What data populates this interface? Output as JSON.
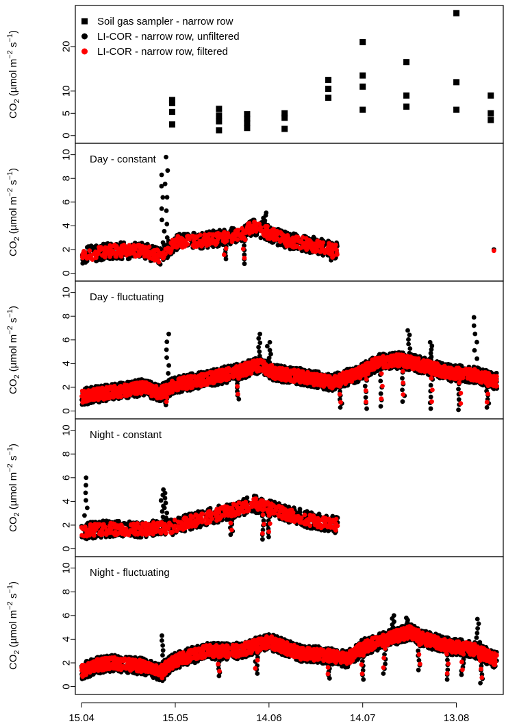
{
  "chart_data": {
    "type": "scatter",
    "ylabel": {
      "base": "CO",
      "sub": "2",
      "rest": " (µmol m",
      "sup1": "−2",
      "mid": " s",
      "sup2": "−1",
      "close": ")"
    },
    "x_ticks": [
      {
        "label": "15.04",
        "day": 0
      },
      {
        "label": "15.05",
        "day": 30
      },
      {
        "label": "14.06",
        "day": 60
      },
      {
        "label": "14.07",
        "day": 90
      },
      {
        "label": "13.08",
        "day": 120
      }
    ],
    "xlim_days": [
      -2,
      135
    ],
    "colors": {
      "unfiltered": "#000000",
      "filtered": "#ff0000",
      "sampler": "#000000"
    },
    "panels": [
      {
        "title": "",
        "ylim": [
          -0.5,
          28
        ],
        "yticks": [
          0,
          5,
          10,
          20
        ],
        "ytick_labels": [
          "0",
          "5",
          "10",
          "20"
        ],
        "legend": {
          "position": "top-left",
          "entries": [
            {
              "label": "Soil gas sampler - narrow row",
              "marker": "square",
              "color": "#000000"
            },
            {
              "label": "LI-COR - narrow row, unfiltered",
              "marker": "circle",
              "color": "#000000"
            },
            {
              "label": "LI-COR - narrow row, filtered",
              "marker": "circle",
              "color": "#ff0000"
            }
          ]
        },
        "sampler_points": [
          {
            "x": 29,
            "y": 8.0
          },
          {
            "x": 29,
            "y": 7.3
          },
          {
            "x": 29,
            "y": 5.3
          },
          {
            "x": 29,
            "y": 2.5
          },
          {
            "x": 44,
            "y": 6.0
          },
          {
            "x": 44,
            "y": 4.5
          },
          {
            "x": 44,
            "y": 3.2
          },
          {
            "x": 44,
            "y": 1.2
          },
          {
            "x": 53,
            "y": 4.8
          },
          {
            "x": 53,
            "y": 3.8
          },
          {
            "x": 53,
            "y": 2.8
          },
          {
            "x": 53,
            "y": 1.7
          },
          {
            "x": 65,
            "y": 5.0
          },
          {
            "x": 65,
            "y": 4.0
          },
          {
            "x": 65,
            "y": 1.5
          },
          {
            "x": 79,
            "y": 12.5
          },
          {
            "x": 79,
            "y": 10.5
          },
          {
            "x": 79,
            "y": 8.5
          },
          {
            "x": 90,
            "y": 21.0
          },
          {
            "x": 90,
            "y": 13.5
          },
          {
            "x": 90,
            "y": 11.0
          },
          {
            "x": 90,
            "y": 5.8
          },
          {
            "x": 104,
            "y": 16.5
          },
          {
            "x": 104,
            "y": 9.0
          },
          {
            "x": 104,
            "y": 6.5
          },
          {
            "x": 120,
            "y": 27.5
          },
          {
            "x": 120,
            "y": 12.0
          },
          {
            "x": 120,
            "y": 5.8
          },
          {
            "x": 131,
            "y": 9.0
          },
          {
            "x": 131,
            "y": 5.0
          },
          {
            "x": 131,
            "y": 3.5
          }
        ]
      },
      {
        "title": "Day - constant",
        "ylim": [
          -0.2,
          10.5
        ],
        "yticks": [
          0,
          2,
          4,
          6,
          8,
          10
        ],
        "ytick_labels": [
          "0",
          "2",
          "4",
          "6",
          "8",
          "10"
        ],
        "series_profile": {
          "start": 0,
          "end": 82,
          "anchors": [
            [
              0,
              1.5
            ],
            [
              10,
              1.9
            ],
            [
              20,
              1.9
            ],
            [
              25,
              1.4
            ],
            [
              30,
              2.6
            ],
            [
              40,
              2.8
            ],
            [
              50,
              3.2
            ],
            [
              55,
              3.9
            ],
            [
              60,
              3.4
            ],
            [
              65,
              2.8
            ],
            [
              70,
              2.6
            ],
            [
              82,
              1.9
            ]
          ],
          "spikes": [
            [
              26,
              8.3
            ],
            [
              27,
              9.8
            ],
            [
              58,
              4.4
            ],
            [
              58.5,
              5.1
            ]
          ],
          "dips": [
            [
              46,
              1.2
            ],
            [
              52,
              0.8
            ],
            [
              80,
              1.1
            ]
          ],
          "isolated": [
            [
              132,
              2.0
            ],
            [
              132,
              2.1
            ]
          ]
        }
      },
      {
        "title": "Day - fluctuating",
        "ylim": [
          -0.2,
          10.5
        ],
        "yticks": [
          0,
          2,
          4,
          6,
          8,
          10
        ],
        "ytick_labels": [
          "0",
          "2",
          "4",
          "6",
          "8",
          "10"
        ],
        "series_profile": {
          "start": 0,
          "end": 133,
          "anchors": [
            [
              0,
              1.2
            ],
            [
              10,
              1.6
            ],
            [
              20,
              2.0
            ],
            [
              25,
              1.5
            ],
            [
              30,
              2.2
            ],
            [
              40,
              2.7
            ],
            [
              50,
              3.3
            ],
            [
              57,
              3.9
            ],
            [
              62,
              3.2
            ],
            [
              70,
              2.9
            ],
            [
              80,
              2.4
            ],
            [
              88,
              3.1
            ],
            [
              95,
              4.1
            ],
            [
              102,
              4.3
            ],
            [
              110,
              3.8
            ],
            [
              118,
              3.2
            ],
            [
              125,
              3.1
            ],
            [
              133,
              2.5
            ]
          ],
          "spikes": [
            [
              27.5,
              6.5
            ],
            [
              57,
              6.5
            ],
            [
              60,
              5.8
            ],
            [
              105,
              6.8
            ],
            [
              126,
              7.9
            ],
            [
              112,
              5.8
            ]
          ],
          "dips": [
            [
              27,
              0.5
            ],
            [
              50,
              1.0
            ],
            [
              83,
              0.3
            ],
            [
              91,
              0.2
            ],
            [
              96,
              0.4
            ],
            [
              103,
              0.8
            ],
            [
              112,
              0.2
            ],
            [
              121,
              0.1
            ],
            [
              130,
              0.3
            ]
          ],
          "isolated": []
        }
      },
      {
        "title": "Night - constant",
        "ylim": [
          -0.2,
          10.5
        ],
        "yticks": [
          0,
          2,
          4,
          6,
          8,
          10
        ],
        "ytick_labels": [
          "0",
          "2",
          "4",
          "6",
          "8",
          "10"
        ],
        "series_profile": {
          "start": 0,
          "end": 82,
          "anchors": [
            [
              0,
              1.5
            ],
            [
              8,
              1.7
            ],
            [
              15,
              1.6
            ],
            [
              22,
              1.7
            ],
            [
              28,
              1.8
            ],
            [
              35,
              2.3
            ],
            [
              45,
              3.0
            ],
            [
              50,
              3.4
            ],
            [
              55,
              3.8
            ],
            [
              60,
              3.4
            ],
            [
              65,
              3.0
            ],
            [
              72,
              2.5
            ],
            [
              82,
              2.0
            ]
          ],
          "spikes": [
            [
              1.5,
              6.0
            ],
            [
              26,
              5.0
            ],
            [
              27,
              4.7
            ]
          ],
          "dips": [
            [
              48,
              1.2
            ],
            [
              58,
              0.8
            ],
            [
              60,
              1.0
            ]
          ],
          "isolated": []
        }
      },
      {
        "title": "Night - fluctuating",
        "ylim": [
          -0.2,
          10.5
        ],
        "yticks": [
          0,
          2,
          4,
          6,
          8,
          10
        ],
        "ytick_labels": [
          "0",
          "2",
          "4",
          "6",
          "8",
          "10"
        ],
        "series_profile": {
          "start": 0,
          "end": 133,
          "anchors": [
            [
              0,
              1.3
            ],
            [
              5,
              1.8
            ],
            [
              10,
              2.0
            ],
            [
              20,
              1.7
            ],
            [
              25,
              1.2
            ],
            [
              30,
              2.2
            ],
            [
              40,
              3.0
            ],
            [
              50,
              3.0
            ],
            [
              60,
              3.8
            ],
            [
              70,
              2.8
            ],
            [
              80,
              2.6
            ],
            [
              85,
              2.3
            ],
            [
              90,
              3.3
            ],
            [
              100,
              4.2
            ],
            [
              105,
              4.6
            ],
            [
              110,
              4.0
            ],
            [
              118,
              3.4
            ],
            [
              125,
              3.2
            ],
            [
              133,
              2.2
            ]
          ],
          "spikes": [
            [
              26,
              4.3
            ],
            [
              100,
              6.0
            ],
            [
              104,
              5.8
            ],
            [
              127,
              5.7
            ]
          ],
          "dips": [
            [
              26,
              0.5
            ],
            [
              44,
              0.9
            ],
            [
              56,
              1.1
            ],
            [
              79,
              0.7
            ],
            [
              90,
              0.6
            ],
            [
              97,
              1.1
            ],
            [
              108,
              1.4
            ],
            [
              117,
              0.6
            ],
            [
              122,
              1.0
            ],
            [
              128,
              0.3
            ]
          ],
          "isolated": []
        }
      }
    ]
  }
}
